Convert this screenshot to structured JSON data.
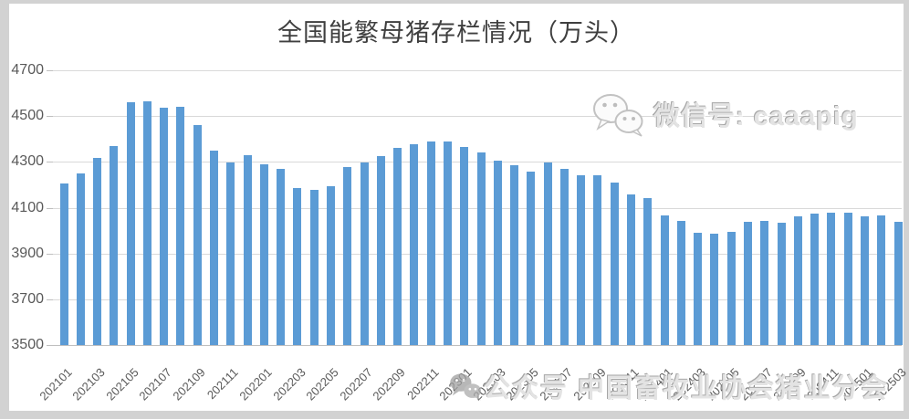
{
  "page": {
    "background_color": "#d2d2d2",
    "canvas_color": "#ffffff"
  },
  "chart_data": {
    "type": "bar",
    "title": "全国能繁母猪存栏情况（万头）",
    "xlabel": "",
    "ylabel": "",
    "ylim": [
      3500,
      4700
    ],
    "yticks": [
      3500,
      3700,
      3900,
      4100,
      4300,
      4500,
      4700
    ],
    "grid": true,
    "legend": "none",
    "bar_color": "#5b9bd5",
    "gridline_color": "#d9d9d9",
    "axis_line_color": "#bfbfbf",
    "tick_label_color": "#595959",
    "categories": [
      "202101",
      "202102",
      "202103",
      "202104",
      "202105",
      "202106",
      "202107",
      "202108",
      "202109",
      "202110",
      "202111",
      "202112",
      "202201",
      "202202",
      "202203",
      "202204",
      "202205",
      "202206",
      "202207",
      "202208",
      "202209",
      "202210",
      "202211",
      "202212",
      "202301",
      "202302",
      "202303",
      "202304",
      "202305",
      "202306",
      "202307",
      "202308",
      "202309",
      "202310",
      "202311",
      "202312",
      "202401",
      "202402",
      "202403",
      "202404",
      "202405",
      "202406",
      "202407",
      "202408",
      "202409",
      "202410",
      "202411",
      "202412",
      "202501",
      "202502",
      "202503"
    ],
    "values": [
      4204,
      4250,
      4318,
      4368,
      4560,
      4564,
      4538,
      4540,
      4459,
      4348,
      4296,
      4329,
      4290,
      4268,
      4185,
      4177,
      4192,
      4277,
      4298,
      4324,
      4362,
      4379,
      4388,
      4390,
      4367,
      4343,
      4305,
      4284,
      4258,
      4296,
      4271,
      4241,
      4240,
      4210,
      4158,
      4142,
      4067,
      4042,
      3992,
      3986,
      3996,
      4038,
      4041,
      4036,
      4062,
      4073,
      4080,
      4078,
      4062,
      4066,
      4039
    ],
    "x_tick_labels": [
      "202101",
      "202103",
      "202105",
      "202107",
      "202109",
      "202111",
      "202201",
      "202203",
      "202205",
      "202207",
      "202209",
      "202211",
      "202301",
      "202303",
      "202305",
      "202307",
      "202309",
      "202311",
      "202401",
      "202403",
      "202405",
      "202407",
      "202409",
      "202411",
      "202501",
      "202503"
    ]
  },
  "watermarks": {
    "wechat_id": {
      "icon": "wechat-icon",
      "text": "微信号: caaapig"
    },
    "account": {
      "icon": "wechat-icon",
      "prefix": "公众号",
      "name": "中国畜牧业协会猪业分会"
    }
  }
}
